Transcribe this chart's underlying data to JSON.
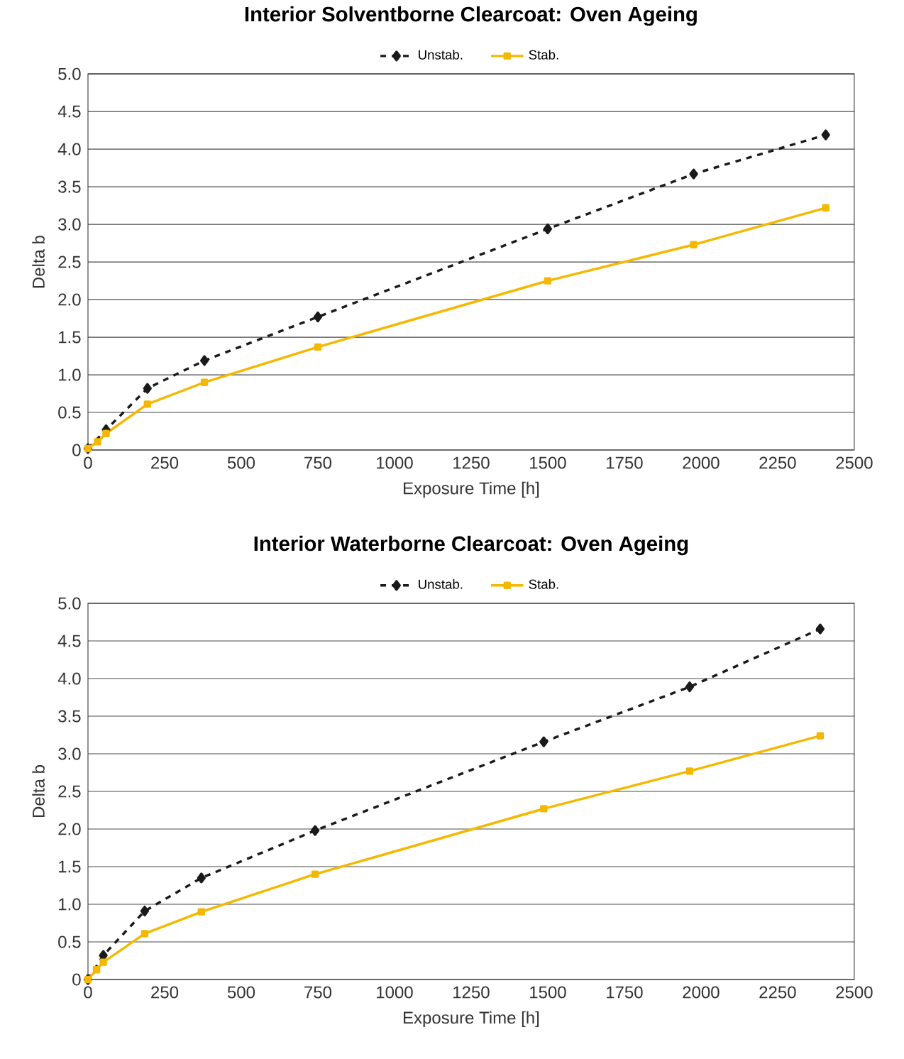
{
  "chart_data": [
    {
      "type": "line",
      "title": "Interior Solventborne Clearcoat: Oven Ageing",
      "xlabel": "Exposure Time [h]",
      "ylabel": "Delta b",
      "xlim": [
        0,
        2500
      ],
      "ylim": [
        0,
        5
      ],
      "xticks": [
        0,
        250,
        500,
        750,
        1000,
        1250,
        1500,
        1750,
        2000,
        2250,
        2500
      ],
      "yticks": [
        0,
        {
          "value": 0.5,
          "label": "0.5"
        },
        {
          "value": 1,
          "label": "1.0"
        },
        {
          "value": 1.5,
          "label": "1.5"
        },
        {
          "value": 2,
          "label": "2.0"
        },
        {
          "value": 2.5,
          "label": "2.5"
        },
        {
          "value": 3,
          "label": "3.0"
        },
        {
          "value": 3.5,
          "label": "3.5"
        },
        {
          "value": 4,
          "label": "4.0"
        },
        {
          "value": 4.5,
          "label": "4.5"
        },
        {
          "value": 5,
          "label": "5.0"
        }
      ],
      "grid": "y",
      "legend": "top",
      "series": [
        {
          "name": "Unstab.",
          "color": "#1a1a1a",
          "marker": "diamond",
          "line_style": "dashed",
          "x": [
            0,
            59,
            194,
            380,
            750,
            1500,
            1976,
            2407
          ],
          "values": [
            0.02,
            0.27,
            0.82,
            1.19,
            1.77,
            2.94,
            3.67,
            4.19
          ]
        },
        {
          "name": "Stab.",
          "color": "#f5b800",
          "marker": "square",
          "line_style": "solid",
          "x": [
            0,
            31,
            59,
            194,
            380,
            750,
            1500,
            1976,
            2407
          ],
          "values": [
            0.02,
            0.11,
            0.22,
            0.61,
            0.9,
            1.37,
            2.25,
            2.73,
            3.22
          ]
        }
      ]
    },
    {
      "type": "line",
      "title": "Interior Waterborne Clearcoat: Oven Ageing",
      "xlabel": "Exposure Time [h]",
      "ylabel": "Delta b",
      "xlim": [
        0,
        2500
      ],
      "ylim": [
        0,
        5
      ],
      "xticks": [
        0,
        250,
        500,
        750,
        1000,
        1250,
        1500,
        1750,
        2000,
        2250,
        2500
      ],
      "yticks": [
        0,
        {
          "value": 0.5,
          "label": "0.5"
        },
        {
          "value": 1,
          "label": "1.0"
        },
        {
          "value": 1.5,
          "label": "1.5"
        },
        {
          "value": 2,
          "label": "2.0"
        },
        {
          "value": 2.5,
          "label": "2.5"
        },
        {
          "value": 3,
          "label": "3.0"
        },
        {
          "value": 3.5,
          "label": "3.5"
        },
        {
          "value": 4,
          "label": "4.0"
        },
        {
          "value": 4.5,
          "label": "4.5"
        },
        {
          "value": 5,
          "label": "5.0"
        }
      ],
      "grid": "y",
      "legend": "top",
      "series": [
        {
          "name": "Unstab.",
          "color": "#1a1a1a",
          "marker": "diamond",
          "line_style": "dashed",
          "x": [
            0,
            50,
            185,
            370,
            741,
            1487,
            1963,
            2389
          ],
          "values": [
            0,
            0.32,
            0.91,
            1.35,
            1.98,
            3.16,
            3.89,
            4.66
          ]
        },
        {
          "name": "Stab.",
          "color": "#f5b800",
          "marker": "square",
          "line_style": "solid",
          "x": [
            0,
            28,
            50,
            185,
            370,
            741,
            1487,
            1963,
            2389
          ],
          "values": [
            0,
            0.13,
            0.23,
            0.61,
            0.9,
            1.4,
            2.27,
            2.77,
            3.24
          ]
        }
      ]
    }
  ]
}
